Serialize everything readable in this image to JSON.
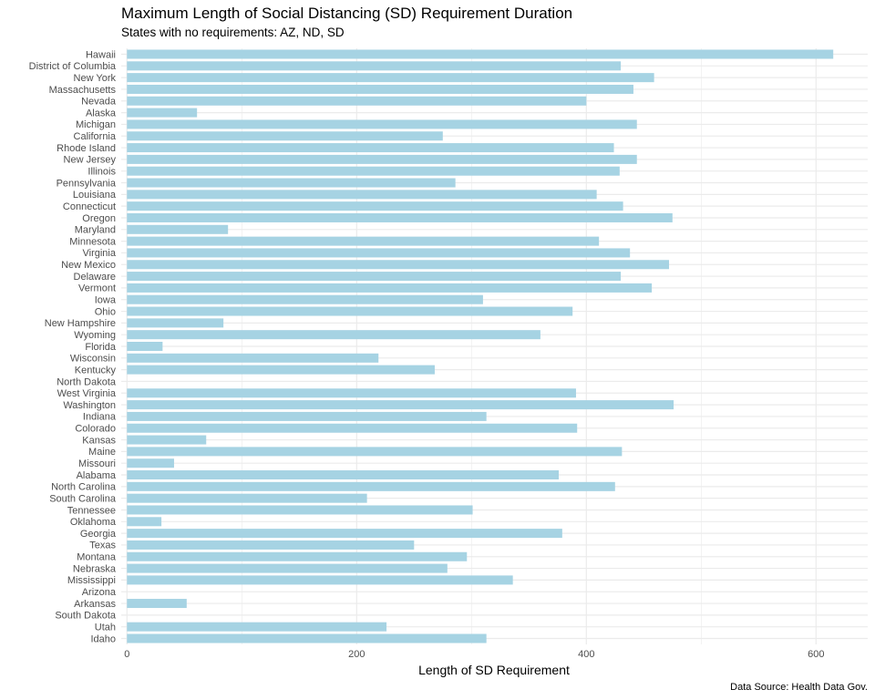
{
  "chart_data": {
    "type": "bar",
    "orientation": "horizontal",
    "title": "Maximum Length of Social Distancing (SD) Requirement Duration",
    "subtitle": "States with no requirements: AZ, ND, SD",
    "caption": "Data Source: Health Data Gov.",
    "xlabel": "Length of SD Requirement",
    "ylabel": "",
    "xlim": [
      -5,
      645
    ],
    "x_ticks": [
      0,
      200,
      400,
      600
    ],
    "grid": true,
    "bar_color": "#a6d3e3",
    "grid_color": "#ebebeb",
    "categories": [
      "Hawaii",
      "District of Columbia",
      "New York",
      "Massachusetts",
      "Nevada",
      "Alaska",
      "Michigan",
      "California",
      "Rhode Island",
      "New Jersey",
      "Illinois",
      "Pennsylvania",
      "Louisiana",
      "Connecticut",
      "Oregon",
      "Maryland",
      "Minnesota",
      "Virginia",
      "New Mexico",
      "Delaware",
      "Vermont",
      "Iowa",
      "Ohio",
      "New Hampshire",
      "Wyoming",
      "Florida",
      "Wisconsin",
      "Kentucky",
      "North Dakota",
      "West Virginia",
      "Washington",
      "Indiana",
      "Colorado",
      "Kansas",
      "Maine",
      "Missouri",
      "Alabama",
      "North Carolina",
      "South Carolina",
      "Tennessee",
      "Oklahoma",
      "Georgia",
      "Texas",
      "Montana",
      "Nebraska",
      "Mississippi",
      "Arizona",
      "Arkansas",
      "South Dakota",
      "Utah",
      "Idaho"
    ],
    "values": [
      615,
      430,
      459,
      441,
      400,
      61,
      444,
      275,
      424,
      444,
      429,
      286,
      409,
      432,
      475,
      88,
      411,
      438,
      472,
      430,
      457,
      310,
      388,
      84,
      360,
      31,
      219,
      268,
      0,
      391,
      476,
      313,
      392,
      69,
      431,
      41,
      376,
      425,
      209,
      301,
      30,
      379,
      250,
      296,
      279,
      336,
      0,
      52,
      0,
      226,
      313
    ]
  }
}
